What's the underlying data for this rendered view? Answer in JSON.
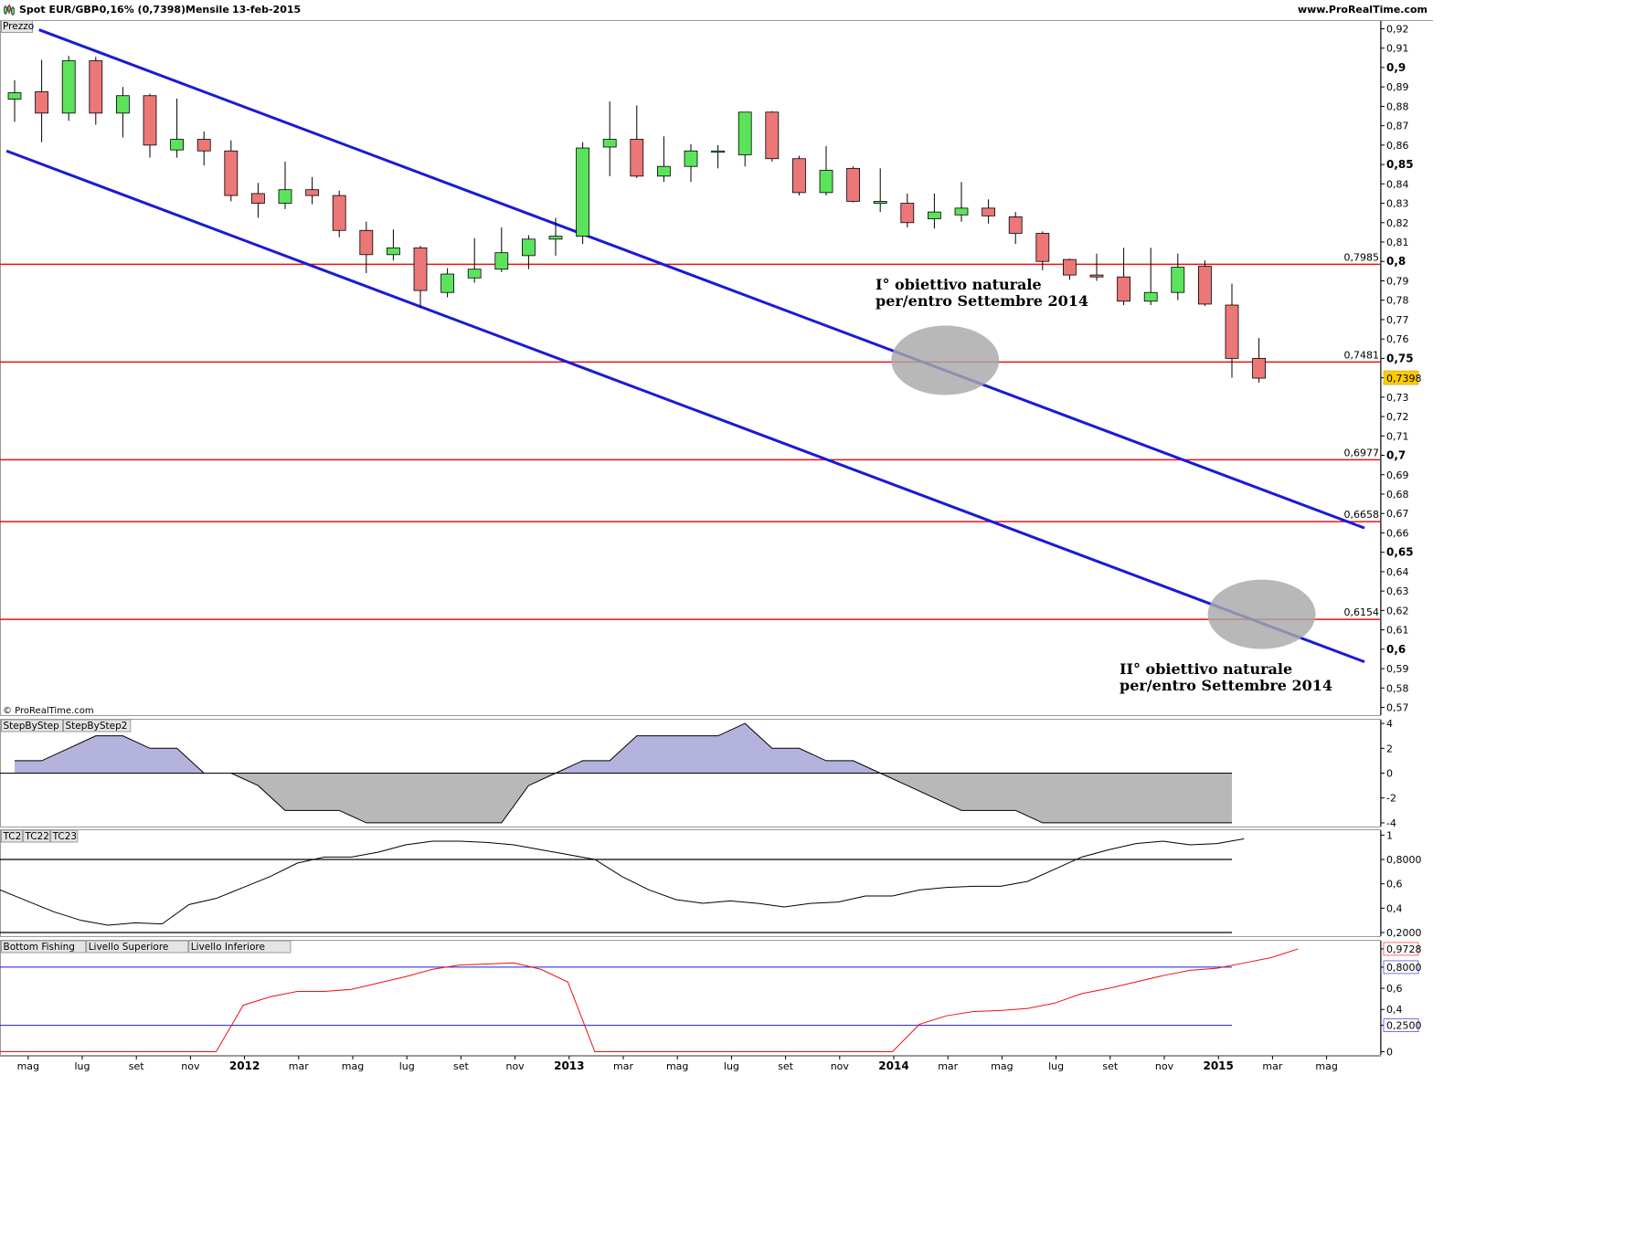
{
  "header": {
    "symbol": "Spot EUR/GBP",
    "change": "-0,16% (0,7398)",
    "period": "Mensile",
    "date": "13-feb-2015",
    "site": "www.ProRealTime.com"
  },
  "watermark": "© ProRealTime.com",
  "colors": {
    "bull": "#5ce35c",
    "bear": "#eb7777",
    "channel": "#1a1ad6",
    "level": "#ee1111",
    "pos_fill": "#b3b3dd",
    "neg_fill": "#b8b8b8",
    "price_tag": "#ffcc00",
    "bottom_fishing": "#ee1111",
    "band": "#1a1ad6",
    "tc_line": "#000000"
  },
  "chart_data": [
    {
      "type": "candlestick",
      "panel": "price",
      "title": "Prezzo",
      "y_ticks": [
        "0,92",
        "0,91",
        "0,9",
        "0,89",
        "0,88",
        "0,87",
        "0,86",
        "0,85",
        "0,84",
        "0,83",
        "0,82",
        "0,81",
        "0,8",
        "0,79",
        "0,78",
        "0,77",
        "0,76",
        "0,75",
        "0,74",
        "0,73",
        "0,72",
        "0,71",
        "0,7",
        "0,69",
        "0,68",
        "0,67",
        "0,66",
        "0,65",
        "0,64",
        "0,63",
        "0,62",
        "0,61",
        "0,6",
        "0,59",
        "0,58",
        "0,57"
      ],
      "ylim": [
        0.566,
        0.924
      ],
      "x_labels": [
        {
          "label": "mag",
          "i": 1
        },
        {
          "label": "lug",
          "i": 3
        },
        {
          "label": "set",
          "i": 5
        },
        {
          "label": "nov",
          "i": 7
        },
        {
          "label": "2012",
          "i": 9,
          "bold": true
        },
        {
          "label": "mar",
          "i": 11
        },
        {
          "label": "mag",
          "i": 13
        },
        {
          "label": "lug",
          "i": 15
        },
        {
          "label": "set",
          "i": 17
        },
        {
          "label": "nov",
          "i": 19
        },
        {
          "label": "2013",
          "i": 21,
          "bold": true
        },
        {
          "label": "mar",
          "i": 23
        },
        {
          "label": "mag",
          "i": 25
        },
        {
          "label": "lug",
          "i": 27
        },
        {
          "label": "set",
          "i": 29
        },
        {
          "label": "nov",
          "i": 31
        },
        {
          "label": "2014",
          "i": 33,
          "bold": true
        },
        {
          "label": "mar",
          "i": 35
        },
        {
          "label": "mag",
          "i": 37
        },
        {
          "label": "lug",
          "i": 39
        },
        {
          "label": "set",
          "i": 41
        },
        {
          "label": "nov",
          "i": 43
        },
        {
          "label": "2015",
          "i": 45,
          "bold": true
        },
        {
          "label": "mar",
          "i": 47
        },
        {
          "label": "mag",
          "i": 49
        }
      ],
      "candles": [
        {
          "o": 0.8837,
          "h": 0.8935,
          "l": 0.872,
          "c": 0.887
        },
        {
          "o": 0.8875,
          "h": 0.904,
          "l": 0.8615,
          "c": 0.8765
        },
        {
          "o": 0.8765,
          "h": 0.906,
          "l": 0.8725,
          "c": 0.9035
        },
        {
          "o": 0.9035,
          "h": 0.9055,
          "l": 0.8705,
          "c": 0.8765
        },
        {
          "o": 0.8765,
          "h": 0.89,
          "l": 0.864,
          "c": 0.8855
        },
        {
          "o": 0.8855,
          "h": 0.8865,
          "l": 0.8535,
          "c": 0.86
        },
        {
          "o": 0.8575,
          "h": 0.884,
          "l": 0.8535,
          "c": 0.863
        },
        {
          "o": 0.863,
          "h": 0.867,
          "l": 0.8495,
          "c": 0.857
        },
        {
          "o": 0.857,
          "h": 0.8625,
          "l": 0.831,
          "c": 0.834
        },
        {
          "o": 0.835,
          "h": 0.8405,
          "l": 0.8225,
          "c": 0.83
        },
        {
          "o": 0.83,
          "h": 0.8515,
          "l": 0.827,
          "c": 0.837
        },
        {
          "o": 0.837,
          "h": 0.8435,
          "l": 0.8295,
          "c": 0.834
        },
        {
          "o": 0.834,
          "h": 0.8365,
          "l": 0.8125,
          "c": 0.816
        },
        {
          "o": 0.816,
          "h": 0.8205,
          "l": 0.794,
          "c": 0.8035
        },
        {
          "o": 0.8035,
          "h": 0.8165,
          "l": 0.8005,
          "c": 0.807
        },
        {
          "o": 0.807,
          "h": 0.808,
          "l": 0.776,
          "c": 0.785
        },
        {
          "o": 0.784,
          "h": 0.7965,
          "l": 0.7815,
          "c": 0.7935
        },
        {
          "o": 0.7915,
          "h": 0.812,
          "l": 0.789,
          "c": 0.796
        },
        {
          "o": 0.796,
          "h": 0.8175,
          "l": 0.7945,
          "c": 0.8045
        },
        {
          "o": 0.803,
          "h": 0.8135,
          "l": 0.796,
          "c": 0.8115
        },
        {
          "o": 0.8115,
          "h": 0.8225,
          "l": 0.803,
          "c": 0.813
        },
        {
          "o": 0.813,
          "h": 0.8615,
          "l": 0.809,
          "c": 0.8585
        },
        {
          "o": 0.859,
          "h": 0.8825,
          "l": 0.844,
          "c": 0.863
        },
        {
          "o": 0.863,
          "h": 0.8805,
          "l": 0.843,
          "c": 0.844
        },
        {
          "o": 0.844,
          "h": 0.8645,
          "l": 0.841,
          "c": 0.849
        },
        {
          "o": 0.849,
          "h": 0.8605,
          "l": 0.841,
          "c": 0.857
        },
        {
          "o": 0.857,
          "h": 0.86,
          "l": 0.848,
          "c": 0.857
        },
        {
          "o": 0.855,
          "h": 0.877,
          "l": 0.849,
          "c": 0.877
        },
        {
          "o": 0.877,
          "h": 0.8775,
          "l": 0.8515,
          "c": 0.853
        },
        {
          "o": 0.853,
          "h": 0.8545,
          "l": 0.834,
          "c": 0.8355
        },
        {
          "o": 0.8355,
          "h": 0.8595,
          "l": 0.834,
          "c": 0.847
        },
        {
          "o": 0.848,
          "h": 0.849,
          "l": 0.8305,
          "c": 0.831
        },
        {
          "o": 0.83,
          "h": 0.848,
          "l": 0.8255,
          "c": 0.831
        },
        {
          "o": 0.83,
          "h": 0.835,
          "l": 0.8175,
          "c": 0.82
        },
        {
          "o": 0.822,
          "h": 0.835,
          "l": 0.817,
          "c": 0.8255
        },
        {
          "o": 0.824,
          "h": 0.841,
          "l": 0.8205,
          "c": 0.8275
        },
        {
          "o": 0.8275,
          "h": 0.832,
          "l": 0.8195,
          "c": 0.8235
        },
        {
          "o": 0.823,
          "h": 0.8255,
          "l": 0.809,
          "c": 0.8145
        },
        {
          "o": 0.8145,
          "h": 0.8155,
          "l": 0.7955,
          "c": 0.8
        },
        {
          "o": 0.801,
          "h": 0.8015,
          "l": 0.7905,
          "c": 0.793
        },
        {
          "o": 0.793,
          "h": 0.804,
          "l": 0.79,
          "c": 0.792
        },
        {
          "o": 0.792,
          "h": 0.807,
          "l": 0.7775,
          "c": 0.7795
        },
        {
          "o": 0.7795,
          "h": 0.807,
          "l": 0.7775,
          "c": 0.784
        },
        {
          "o": 0.784,
          "h": 0.804,
          "l": 0.78,
          "c": 0.797
        },
        {
          "o": 0.7975,
          "h": 0.8005,
          "l": 0.777,
          "c": 0.778
        },
        {
          "o": 0.7775,
          "h": 0.7885,
          "l": 0.74,
          "c": 0.75
        },
        {
          "o": 0.75,
          "h": 0.7605,
          "l": 0.7375,
          "c": 0.7398
        }
      ],
      "levels": [
        {
          "value": 0.7985,
          "label": "0,7985"
        },
        {
          "value": 0.7481,
          "label": "0,7481"
        },
        {
          "value": 0.6977,
          "label": "0,6977"
        },
        {
          "value": 0.6658,
          "label": "0,6658"
        },
        {
          "value": 0.6154,
          "label": "0,6154"
        }
      ],
      "channel_upper": [
        {
          "i": 0.9,
          "v": 0.9195
        },
        {
          "i": 49.9,
          "v": 0.6625
        }
      ],
      "channel_lower": [
        {
          "i": -0.3,
          "v": 0.857
        },
        {
          "i": 49.9,
          "v": 0.5935
        }
      ],
      "last_price": {
        "value": 0.7398,
        "label": "0,7398"
      },
      "targets": [
        {
          "line1": "I° obiettivo naturale",
          "line2": "per/entro Settembre 2014",
          "i": 34.4,
          "v": 0.749
        },
        {
          "line1": "II° obiettivo naturale",
          "line2": "per/entro Settembre 2014",
          "i": 46.1,
          "v": 0.618
        }
      ]
    },
    {
      "type": "area",
      "panel": "stepbystep",
      "legend": [
        "StepByStep",
        "StepByStep2"
      ],
      "y_ticks": [
        "4",
        "2",
        "0",
        "-2",
        "-4"
      ],
      "ylim": [
        -4.3,
        4.3
      ],
      "values": [
        1,
        1,
        2,
        3,
        3,
        2,
        2,
        0,
        0,
        -1,
        -3,
        -3,
        -3,
        -4,
        -4,
        -4,
        -4,
        -4,
        -4,
        -1,
        0,
        1,
        1,
        3,
        3,
        3,
        3,
        4,
        2,
        2,
        1,
        1,
        0,
        -1,
        -2,
        -3,
        -3,
        -3,
        -4,
        -4,
        -4,
        -4,
        -4,
        -4,
        -4,
        -4
      ]
    },
    {
      "type": "line",
      "panel": "tc",
      "legend": [
        "TC2",
        "TC22",
        "TC23"
      ],
      "y_ticks": [
        "1",
        "0,8000",
        "0,6",
        "0,4",
        "0,2000"
      ],
      "ylim": [
        0.17,
        1.04
      ],
      "reference_lines": [
        0.8,
        0.2
      ],
      "values": [
        0.55,
        0.46,
        0.37,
        0.3,
        0.26,
        0.28,
        0.27,
        0.43,
        0.48,
        0.57,
        0.66,
        0.77,
        0.82,
        0.82,
        0.86,
        0.92,
        0.95,
        0.95,
        0.94,
        0.92,
        0.88,
        0.84,
        0.8,
        0.66,
        0.55,
        0.47,
        0.44,
        0.46,
        0.44,
        0.41,
        0.44,
        0.45,
        0.5,
        0.5,
        0.55,
        0.57,
        0.58,
        0.58,
        0.62,
        0.72,
        0.82,
        0.88,
        0.93,
        0.95,
        0.92,
        0.93,
        0.97
      ]
    },
    {
      "type": "line",
      "panel": "bottomfishing",
      "legend": [
        "Bottom Fishing",
        "Livello Superiore",
        "Livello Inferiore"
      ],
      "y_ticks": [
        "0,9728",
        "0,8000",
        "0,6",
        "0,4",
        "0,2500",
        "0"
      ],
      "ylim": [
        -0.03,
        1.05
      ],
      "upper_level": 0.8,
      "lower_level": 0.25,
      "values": [
        0,
        0,
        0,
        0,
        0,
        0,
        0,
        0,
        0,
        0.44,
        0.52,
        0.57,
        0.57,
        0.59,
        0.65,
        0.71,
        0.78,
        0.82,
        0.83,
        0.84,
        0.78,
        0.66,
        0,
        0,
        0,
        0,
        0,
        0,
        0,
        0,
        0,
        0,
        0,
        0,
        0.26,
        0.34,
        0.38,
        0.39,
        0.41,
        0.46,
        0.55,
        0.6,
        0.66,
        0.72,
        0.77,
        0.79,
        0.84,
        0.89,
        0.9728
      ]
    }
  ]
}
